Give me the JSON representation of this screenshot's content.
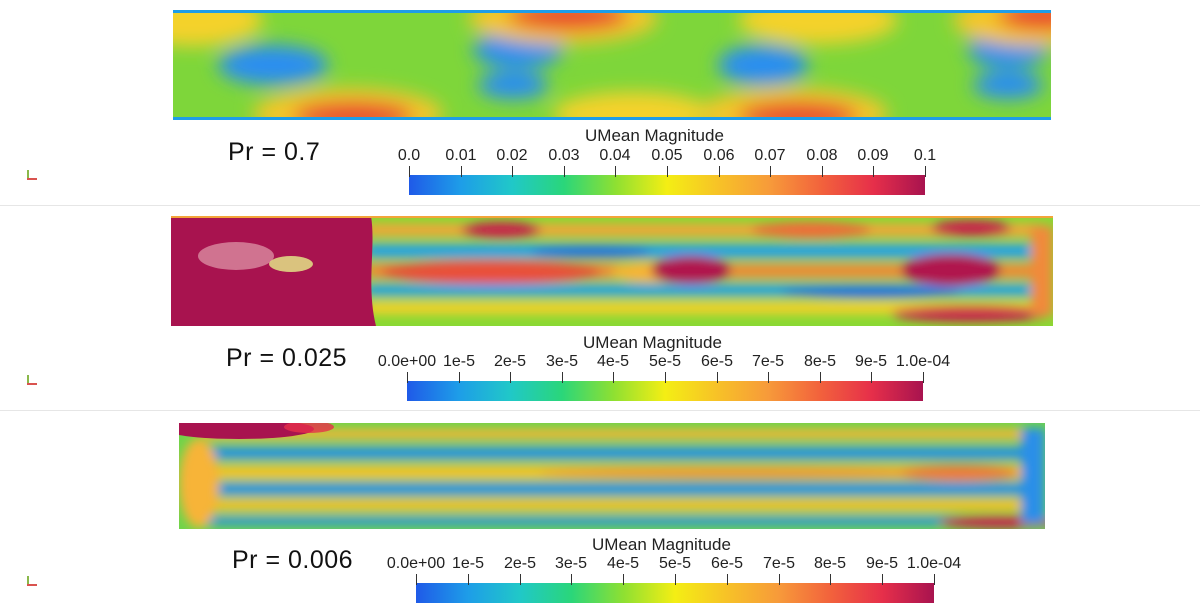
{
  "panels": [
    {
      "pr_label": "Pr = 0.7",
      "colorbar": {
        "title": "UMean Magnitude",
        "ticks": [
          "0.0",
          "0.01",
          "0.02",
          "0.03",
          "0.04",
          "0.05",
          "0.06",
          "0.07",
          "0.08",
          "0.09",
          "0.1"
        ]
      }
    },
    {
      "pr_label": "Pr = 0.025",
      "colorbar": {
        "title": "UMean Magnitude",
        "ticks": [
          "0.0e+00",
          "1e-5",
          "2e-5",
          "3e-5",
          "4e-5",
          "5e-5",
          "6e-5",
          "7e-5",
          "8e-5",
          "9e-5",
          "1.0e-04"
        ]
      }
    },
    {
      "pr_label": "Pr = 0.006",
      "colorbar": {
        "title": "UMean Magnitude",
        "ticks": [
          "0.0e+00",
          "1e-5",
          "2e-5",
          "3e-5",
          "4e-5",
          "5e-5",
          "6e-5",
          "7e-5",
          "8e-5",
          "9e-5",
          "1.0e-04"
        ]
      }
    }
  ],
  "colormap": [
    "#1f5ae8",
    "#1e9de8",
    "#20c8c8",
    "#2ad67a",
    "#8ee032",
    "#f4ee14",
    "#f7c227",
    "#f79a3a",
    "#f2623c",
    "#e62f4a",
    "#a8134f"
  ],
  "icons": [
    "axes-orientation-icon"
  ]
}
